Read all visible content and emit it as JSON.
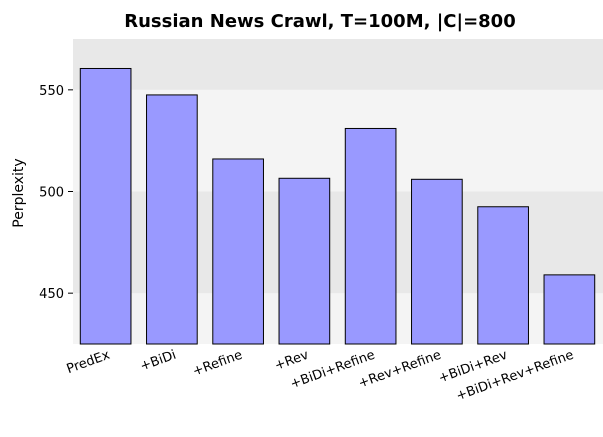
{
  "chart_data": {
    "type": "bar",
    "title": "Russian News Crawl, T=100M, |C|=800",
    "xlabel": "",
    "ylabel": "Perplexity",
    "categories": [
      "PredEx",
      "+BiDi",
      "+Refine",
      "+Rev",
      "+BiDi+Refine",
      "+Rev+Refine",
      "+BiDi+Rev",
      "+BiDi+Rev+Refine"
    ],
    "values": [
      560.5,
      547.5,
      516,
      506.5,
      531,
      506,
      492.5,
      459
    ],
    "ylim": [
      425,
      575
    ],
    "yticks": [
      450,
      500,
      550
    ],
    "grid": false,
    "legend": "none",
    "colors": {
      "bar_fill": "#9999ff",
      "bar_stroke": "#000000",
      "band_dark": "#e8e8e8",
      "band_light": "#f4f4f4"
    }
  }
}
